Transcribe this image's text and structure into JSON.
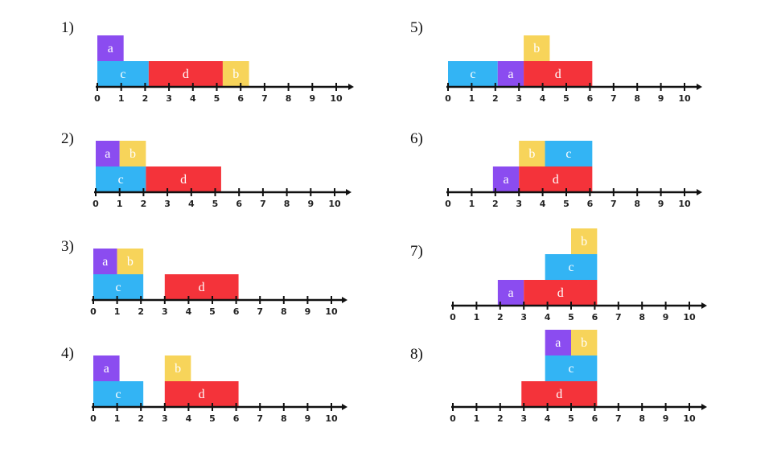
{
  "colors": {
    "a": "#8b4cf0",
    "b": "#f7d45a",
    "c": "#33b4f4",
    "d": "#f4333a",
    "axis": "#111111",
    "text": "#ffffff"
  },
  "axis": {
    "ticks": [
      "0",
      "1",
      "2",
      "3",
      "4",
      "5",
      "6",
      "7",
      "8",
      "9",
      "10"
    ]
  },
  "panels": [
    {
      "label": "1)",
      "blocks": [
        {
          "id": "c",
          "label": "c",
          "start": 0,
          "end": 2.15,
          "row": 0
        },
        {
          "id": "d",
          "label": "d",
          "start": 2.15,
          "end": 5.25,
          "row": 0
        },
        {
          "id": "b",
          "label": "b",
          "start": 5.25,
          "end": 6.35,
          "row": 0
        },
        {
          "id": "a",
          "label": "a",
          "start": 0,
          "end": 1.1,
          "row": 1
        }
      ]
    },
    {
      "label": "2)",
      "blocks": [
        {
          "id": "c",
          "label": "c",
          "start": 0,
          "end": 2.1,
          "row": 0
        },
        {
          "id": "d",
          "label": "d",
          "start": 2.1,
          "end": 5.25,
          "row": 0
        },
        {
          "id": "a",
          "label": "a",
          "start": 0,
          "end": 1.0,
          "row": 1
        },
        {
          "id": "b",
          "label": "b",
          "start": 1.0,
          "end": 2.1,
          "row": 1
        }
      ]
    },
    {
      "label": "3)",
      "blocks": [
        {
          "id": "c",
          "label": "c",
          "start": 0,
          "end": 2.1,
          "row": 0
        },
        {
          "id": "d",
          "label": "d",
          "start": 3.0,
          "end": 6.1,
          "row": 0
        },
        {
          "id": "a",
          "label": "a",
          "start": 0,
          "end": 1.0,
          "row": 1
        },
        {
          "id": "b",
          "label": "b",
          "start": 1.0,
          "end": 2.1,
          "row": 1
        }
      ]
    },
    {
      "label": "4)",
      "blocks": [
        {
          "id": "c",
          "label": "c",
          "start": 0,
          "end": 2.1,
          "row": 0
        },
        {
          "id": "d",
          "label": "d",
          "start": 3.0,
          "end": 6.1,
          "row": 0
        },
        {
          "id": "a",
          "label": "a",
          "start": 0,
          "end": 1.1,
          "row": 1
        },
        {
          "id": "b",
          "label": "b",
          "start": 3.0,
          "end": 4.1,
          "row": 1
        }
      ]
    },
    {
      "label": "5)",
      "blocks": [
        {
          "id": "c",
          "label": "c",
          "start": 0,
          "end": 2.1,
          "row": 0
        },
        {
          "id": "a",
          "label": "a",
          "start": 2.1,
          "end": 3.2,
          "row": 0
        },
        {
          "id": "d",
          "label": "d",
          "start": 3.2,
          "end": 6.1,
          "row": 0
        },
        {
          "id": "b",
          "label": "b",
          "start": 3.2,
          "end": 4.3,
          "row": 1
        }
      ]
    },
    {
      "label": "6)",
      "blocks": [
        {
          "id": "a",
          "label": "a",
          "start": 1.9,
          "end": 3.0,
          "row": 0
        },
        {
          "id": "d",
          "label": "d",
          "start": 3.0,
          "end": 6.1,
          "row": 0
        },
        {
          "id": "b",
          "label": "b",
          "start": 3.0,
          "end": 4.1,
          "row": 1
        },
        {
          "id": "c",
          "label": "c",
          "start": 4.1,
          "end": 6.1,
          "row": 1
        }
      ]
    },
    {
      "label": "7)",
      "blocks": [
        {
          "id": "a",
          "label": "a",
          "start": 1.9,
          "end": 3.0,
          "row": 0
        },
        {
          "id": "d",
          "label": "d",
          "start": 3.0,
          "end": 6.1,
          "row": 0
        },
        {
          "id": "c",
          "label": "c",
          "start": 3.9,
          "end": 6.1,
          "row": 1
        },
        {
          "id": "b",
          "label": "b",
          "start": 5.0,
          "end": 6.1,
          "row": 2
        }
      ]
    },
    {
      "label": "8)",
      "blocks": [
        {
          "id": "d",
          "label": "d",
          "start": 2.9,
          "end": 6.1,
          "row": 0
        },
        {
          "id": "c",
          "label": "c",
          "start": 3.9,
          "end": 6.1,
          "row": 1
        },
        {
          "id": "a",
          "label": "a",
          "start": 3.9,
          "end": 5.0,
          "row": 2
        },
        {
          "id": "b",
          "label": "b",
          "start": 5.0,
          "end": 6.1,
          "row": 2
        }
      ]
    }
  ]
}
